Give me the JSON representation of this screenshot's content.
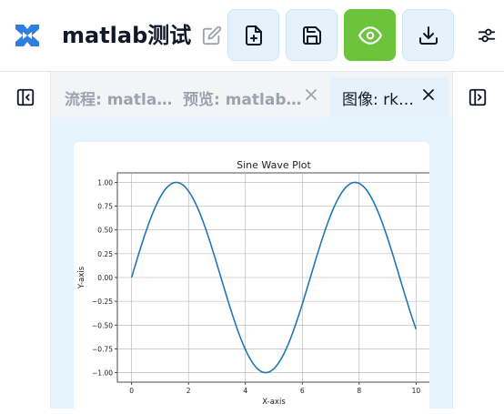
{
  "header": {
    "title": "matlab测试",
    "buttons": [
      {
        "name": "new-file-button",
        "icon": "file-plus-icon"
      },
      {
        "name": "save-button",
        "icon": "save-icon"
      },
      {
        "name": "preview-button",
        "icon": "eye-icon",
        "active": true
      },
      {
        "name": "download-button",
        "icon": "download-icon"
      }
    ]
  },
  "tabs": [
    {
      "label": "流程: matla…",
      "active": false
    },
    {
      "label": "预览: matlab…",
      "active": false
    },
    {
      "label": "图像: rk…",
      "active": true
    }
  ],
  "colors": {
    "accent_green": "#6cc43c",
    "button_bg": "#e6f2fb",
    "content_bg": "#e6f4fd",
    "logo_blue": "#2f7fe0",
    "line": "#1f77b4"
  },
  "chart_data": {
    "type": "line",
    "title": "Sine Wave Plot",
    "xlabel": "X-axis",
    "ylabel": "Y-axis",
    "xlim": [
      -0.5,
      10.5
    ],
    "ylim": [
      -1.1,
      1.1
    ],
    "grid": true,
    "function": "sin(x)",
    "x_range": [
      0,
      10
    ],
    "xticks": [
      0,
      2,
      4,
      6,
      8,
      10
    ],
    "xtick_labels": [
      "0",
      "2",
      "4",
      "6",
      "8",
      "10"
    ],
    "yticks": [
      -1.0,
      -0.75,
      -0.5,
      -0.25,
      0.0,
      0.25,
      0.5,
      0.75,
      1.0
    ],
    "ytick_labels": [
      "−1.00",
      "−0.75",
      "−0.50",
      "−0.25",
      "0.00",
      "0.25",
      "0.50",
      "0.75",
      "1.00"
    ]
  }
}
